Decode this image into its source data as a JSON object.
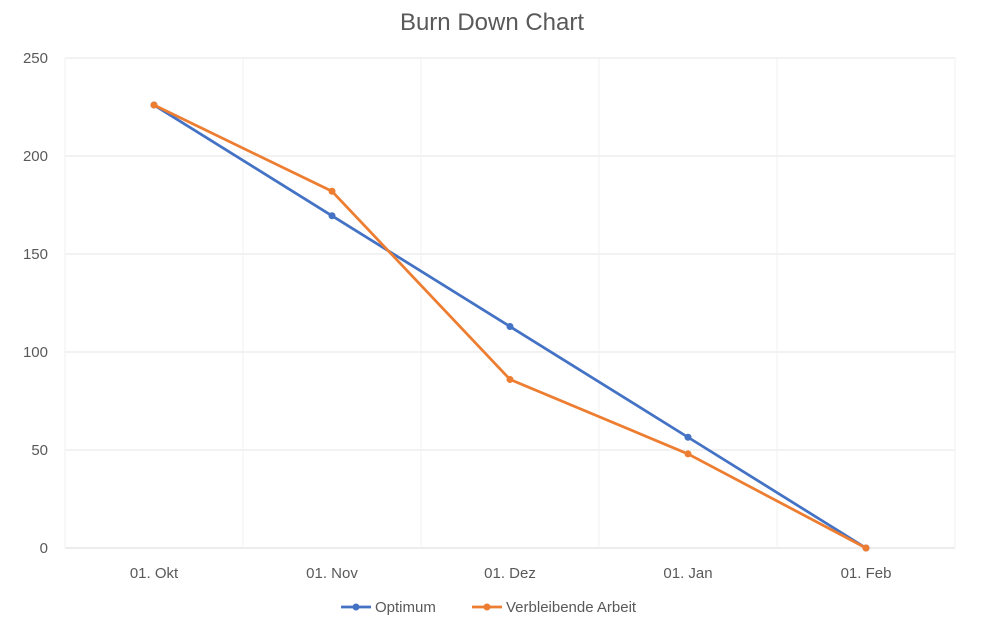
{
  "chart_data": {
    "type": "line",
    "title": "Burn Down Chart",
    "xlabel": "",
    "ylabel": "",
    "categories": [
      "01. Okt",
      "01. Nov",
      "01. Dez",
      "01. Jan",
      "01. Feb"
    ],
    "y_ticks": [
      "0",
      "50",
      "100",
      "150",
      "200",
      "250"
    ],
    "ylim": [
      0,
      250
    ],
    "grid": true,
    "legend_position": "bottom",
    "series": [
      {
        "name": "Optimum",
        "color": "#4472C4",
        "values": [
          226,
          169.5,
          113,
          56.5,
          0
        ]
      },
      {
        "name": "Verbleibende Arbeit",
        "color": "#ED7D31",
        "values": [
          226,
          182,
          86,
          48,
          0
        ]
      }
    ]
  }
}
